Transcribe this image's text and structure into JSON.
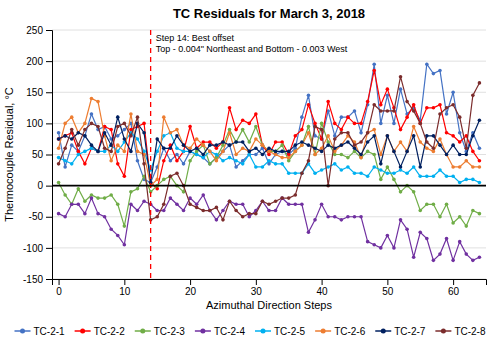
{
  "chart_data": {
    "type": "line",
    "title": "TC Residuals for March 3, 2018",
    "xlabel": "Azimuthal Direction Steps",
    "ylabel": "Thermocouple Residual, °C",
    "xlim": [
      -1,
      65
    ],
    "ylim": [
      -150,
      250
    ],
    "xticks": [
      0,
      10,
      20,
      30,
      40,
      50,
      60
    ],
    "yticks": [
      -150,
      -100,
      -50,
      0,
      50,
      100,
      150,
      200,
      250
    ],
    "grid": true,
    "x": [
      0,
      1,
      2,
      3,
      4,
      5,
      6,
      7,
      8,
      9,
      10,
      11,
      12,
      13,
      14,
      15,
      16,
      17,
      18,
      19,
      20,
      21,
      22,
      23,
      24,
      25,
      26,
      27,
      28,
      29,
      30,
      31,
      32,
      33,
      34,
      35,
      36,
      37,
      38,
      39,
      40,
      41,
      42,
      43,
      44,
      45,
      46,
      47,
      48,
      49,
      50,
      51,
      52,
      53,
      54,
      55,
      56,
      57,
      58,
      59,
      60,
      61,
      62,
      63,
      64
    ],
    "annotations": [
      {
        "type": "vline",
        "x": 14,
        "text": "Step 14: Best offset\nTop - 0.004\" Northeast and Bottom - 0.003 West",
        "color": "red",
        "line_style": "dashed"
      },
      {
        "type": "hline",
        "y": 0,
        "color": "black",
        "line_style": "solid"
      }
    ],
    "series": [
      {
        "name": "TC-2-1",
        "color": "#4472C4",
        "marker": "circle",
        "line_style": "solid",
        "values": [
          85,
          30,
          65,
          55,
          80,
          115,
          90,
          95,
          75,
          80,
          90,
          100,
          40,
          10,
          5,
          30,
          60,
          40,
          50,
          35,
          55,
          50,
          45,
          35,
          45,
          55,
          65,
          30,
          40,
          50,
          50,
          60,
          35,
          50,
          55,
          50,
          60,
          110,
          145,
          80,
          75,
          120,
          80,
          110,
          110,
          120,
          85,
          130,
          195,
          100,
          145,
          100,
          155,
          115,
          125,
          105,
          195,
          180,
          185,
          115,
          150,
          85,
          55,
          85,
          60
        ]
      },
      {
        "name": "TC-2-2",
        "color": "#FF0000",
        "marker": "circle",
        "line_style": "solid",
        "values": [
          75,
          80,
          85,
          55,
          35,
          60,
          55,
          95,
          90,
          35,
          15,
          90,
          95,
          100,
          5,
          -5,
          40,
          65,
          40,
          55,
          95,
          60,
          70,
          70,
          60,
          70,
          125,
          90,
          105,
          100,
          115,
          65,
          50,
          70,
          70,
          50,
          80,
          90,
          130,
          100,
          75,
          135,
          100,
          90,
          110,
          100,
          100,
          135,
          185,
          130,
          155,
          125,
          90,
          110,
          130,
          100,
          125,
          125,
          130,
          85,
          80,
          70,
          80,
          55,
          40
        ]
      },
      {
        "name": "TC-2-3",
        "color": "#70AD47",
        "marker": "circle",
        "line_style": "solid",
        "values": [
          5,
          -15,
          -30,
          -5,
          -25,
          -15,
          -20,
          -20,
          -15,
          -30,
          -65,
          -10,
          -5,
          15,
          -10,
          0,
          10,
          15,
          0,
          -10,
          40,
          55,
          65,
          35,
          45,
          65,
          90,
          70,
          90,
          70,
          95,
          65,
          55,
          55,
          65,
          40,
          55,
          65,
          95,
          50,
          100,
          70,
          50,
          50,
          45,
          55,
          45,
          55,
          50,
          10,
          30,
          10,
          -10,
          0,
          -10,
          -40,
          -30,
          -30,
          -50,
          -30,
          -60,
          -50,
          -65,
          -40,
          -45
        ]
      },
      {
        "name": "TC-2-4",
        "color": "#7030A0",
        "marker": "circle",
        "line_style": "solid",
        "values": [
          -45,
          -50,
          -30,
          -30,
          -45,
          -20,
          -45,
          -50,
          -70,
          -80,
          -95,
          -30,
          -40,
          -25,
          -30,
          -40,
          -40,
          -20,
          -30,
          -40,
          -20,
          -30,
          -15,
          -40,
          -55,
          -40,
          -25,
          -30,
          -30,
          -50,
          -40,
          -25,
          -40,
          -40,
          -20,
          -30,
          -30,
          -30,
          -75,
          -55,
          -30,
          -50,
          -50,
          -55,
          -50,
          -50,
          -50,
          -90,
          -95,
          -100,
          -80,
          -100,
          -55,
          -70,
          -115,
          -75,
          -85,
          -120,
          -110,
          -85,
          -120,
          -90,
          -110,
          -120,
          -115
        ]
      },
      {
        "name": "TC-2-5",
        "color": "#00B0F0",
        "marker": "circle",
        "line_style": "solid",
        "values": [
          45,
          40,
          35,
          50,
          55,
          60,
          55,
          55,
          65,
          55,
          70,
          85,
          75,
          55,
          25,
          55,
          80,
          85,
          60,
          55,
          55,
          50,
          45,
          55,
          50,
          40,
          45,
          40,
          35,
          50,
          30,
          30,
          40,
          35,
          35,
          20,
          20,
          20,
          35,
          20,
          25,
          30,
          35,
          25,
          30,
          20,
          20,
          15,
          30,
          25,
          20,
          20,
          25,
          20,
          30,
          15,
          15,
          15,
          25,
          15,
          15,
          5,
          10,
          10,
          5
        ]
      },
      {
        "name": "TC-2-6",
        "color": "#ED7D31",
        "marker": "circle",
        "line_style": "solid",
        "values": [
          60,
          100,
          110,
          85,
          100,
          140,
          135,
          80,
          40,
          65,
          55,
          115,
          55,
          50,
          0,
          10,
          110,
          85,
          90,
          65,
          60,
          75,
          65,
          55,
          40,
          55,
          85,
          50,
          60,
          55,
          75,
          65,
          55,
          50,
          45,
          45,
          55,
          65,
          85,
          50,
          60,
          80,
          55,
          65,
          80,
          70,
          45,
          85,
          90,
          50,
          80,
          55,
          70,
          55,
          95,
          70,
          60,
          55,
          75,
          50,
          30,
          30,
          40,
          30,
          30
        ]
      },
      {
        "name": "TC-2-7",
        "color": "#002060",
        "marker": "circle",
        "line_style": "solid",
        "values": [
          75,
          80,
          75,
          85,
          80,
          65,
          55,
          85,
          65,
          110,
          75,
          55,
          100,
          85,
          5,
          75,
          60,
          60,
          80,
          65,
          55,
          60,
          50,
          65,
          65,
          70,
          65,
          70,
          70,
          55,
          60,
          50,
          60,
          55,
          55,
          55,
          65,
          70,
          65,
          60,
          55,
          65,
          60,
          65,
          70,
          60,
          50,
          70,
          80,
          35,
          80,
          55,
          30,
          55,
          80,
          30,
          80,
          80,
          65,
          50,
          65,
          50,
          50,
          80,
          105
        ]
      },
      {
        "name": "TC-2-8",
        "color": "#7B2C2C",
        "marker": "circle",
        "line_style": "solid",
        "values": [
          35,
          60,
          90,
          65,
          90,
          100,
          95,
          60,
          55,
          95,
          100,
          80,
          110,
          35,
          -55,
          -50,
          -30,
          15,
          20,
          0,
          -30,
          -35,
          -40,
          -40,
          -35,
          -55,
          -25,
          -40,
          -50,
          -45,
          -45,
          -25,
          -30,
          -25,
          -20,
          -20,
          -15,
          20,
          40,
          95,
          90,
          0,
          75,
          85,
          85,
          65,
          70,
          85,
          130,
          120,
          120,
          120,
          175,
          135,
          120,
          100,
          70,
          60,
          115,
          125,
          130,
          110,
          60,
          145,
          165
        ]
      }
    ]
  }
}
